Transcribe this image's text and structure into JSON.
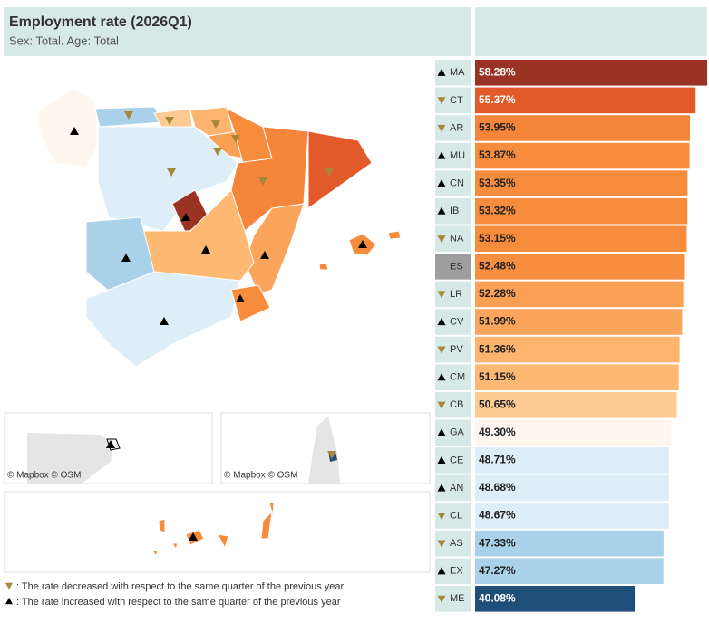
{
  "chart_data": {
    "type": "bar",
    "title": "Employment rate (2026Q1)",
    "subtitle": "Sex: Total. Age: Total",
    "categories": [
      "MA",
      "CT",
      "AR",
      "MU",
      "CN",
      "IB",
      "NA",
      "ES",
      "LR",
      "CV",
      "PV",
      "CM",
      "CB",
      "GA",
      "CE",
      "AN",
      "CL",
      "AS",
      "EX",
      "ME"
    ],
    "values": [
      58.28,
      55.37,
      53.95,
      53.87,
      53.35,
      53.32,
      53.15,
      52.48,
      52.28,
      51.99,
      51.36,
      51.15,
      50.65,
      49.3,
      48.71,
      48.68,
      48.67,
      47.33,
      47.27,
      40.08
    ],
    "value_labels": [
      "58.28%",
      "55.37%",
      "53.95%",
      "53.87%",
      "53.35%",
      "53.32%",
      "53.15%",
      "52.48%",
      "52.28%",
      "51.99%",
      "51.36%",
      "51.15%",
      "50.65%",
      "49.30%",
      "48.71%",
      "48.68%",
      "48.67%",
      "47.33%",
      "47.27%",
      "40.08%"
    ],
    "colors": [
      "#9b3324",
      "#e2592a",
      "#f5853a",
      "#f78c3c",
      "#f78c3c",
      "#f78c3c",
      "#f78c3c",
      "#f88e3f",
      "#f9a055",
      "#fba55c",
      "#fdb46e",
      "#fdb872",
      "#fdca93",
      "#fef6ef",
      "#ddeef8",
      "#ddeef8",
      "#ddeef8",
      "#a9d1ea",
      "#a9d1ea",
      "#1f4e79"
    ],
    "trend": [
      "up",
      "down",
      "down",
      "up",
      "up",
      "up",
      "down",
      null,
      "down",
      "up",
      "down",
      "up",
      "down",
      "up",
      "up",
      "up",
      "down",
      "down",
      "up",
      "down"
    ],
    "up_color": "#000000",
    "down_color": "#a8873a",
    "attribution": "© Mapbox  © OSM",
    "legend": {
      "down": ": The rate decreased with respect to the same quarter of the previous year",
      "up": ": The rate increased with respect to the same quarter of the previous year"
    }
  }
}
